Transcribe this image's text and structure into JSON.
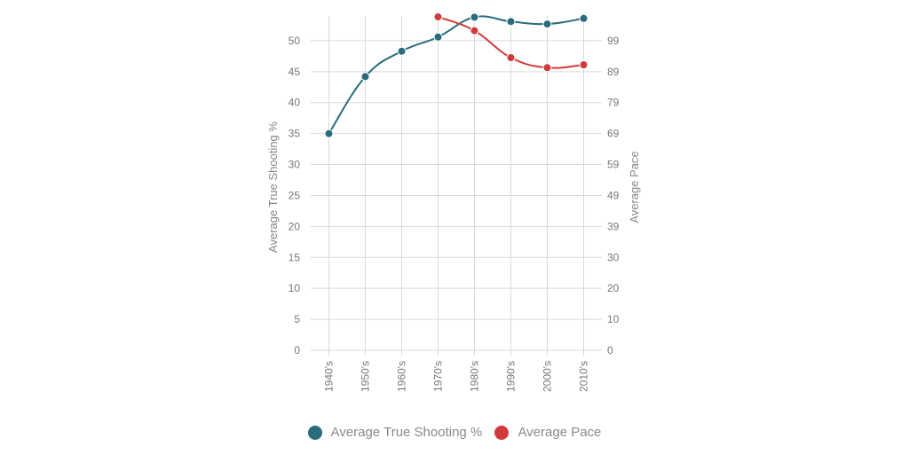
{
  "chart_data": {
    "type": "line",
    "categories": [
      "1940's",
      "1950's",
      "1960's",
      "1970's",
      "1980's",
      "1990's",
      "2000's",
      "2010's"
    ],
    "y_left": {
      "label": "Average True Shooting %",
      "ticks": [
        "0",
        "5",
        "10",
        "15",
        "20",
        "25",
        "30",
        "35",
        "40",
        "45",
        "50"
      ],
      "lim": [
        0,
        54
      ]
    },
    "y_right": {
      "label": "Average Pace",
      "ticks": [
        "0",
        "10",
        "20",
        "30",
        "39",
        "49",
        "59",
        "69",
        "79",
        "89",
        "99"
      ],
      "lim": [
        0,
        106.7
      ]
    },
    "series": [
      {
        "name": "Average True Shooting %",
        "axis": "left",
        "color": "#2a6b7c",
        "values": [
          35.0,
          44.2,
          48.3,
          50.6,
          53.8,
          53.1,
          52.7,
          53.6
        ]
      },
      {
        "name": "Average Pace",
        "axis": "right",
        "color": "#d03a3a",
        "values": [
          null,
          null,
          null,
          106.4,
          102.0,
          93.4,
          90.2,
          91.1
        ]
      }
    ],
    "grid": true,
    "legend": "bottom"
  }
}
